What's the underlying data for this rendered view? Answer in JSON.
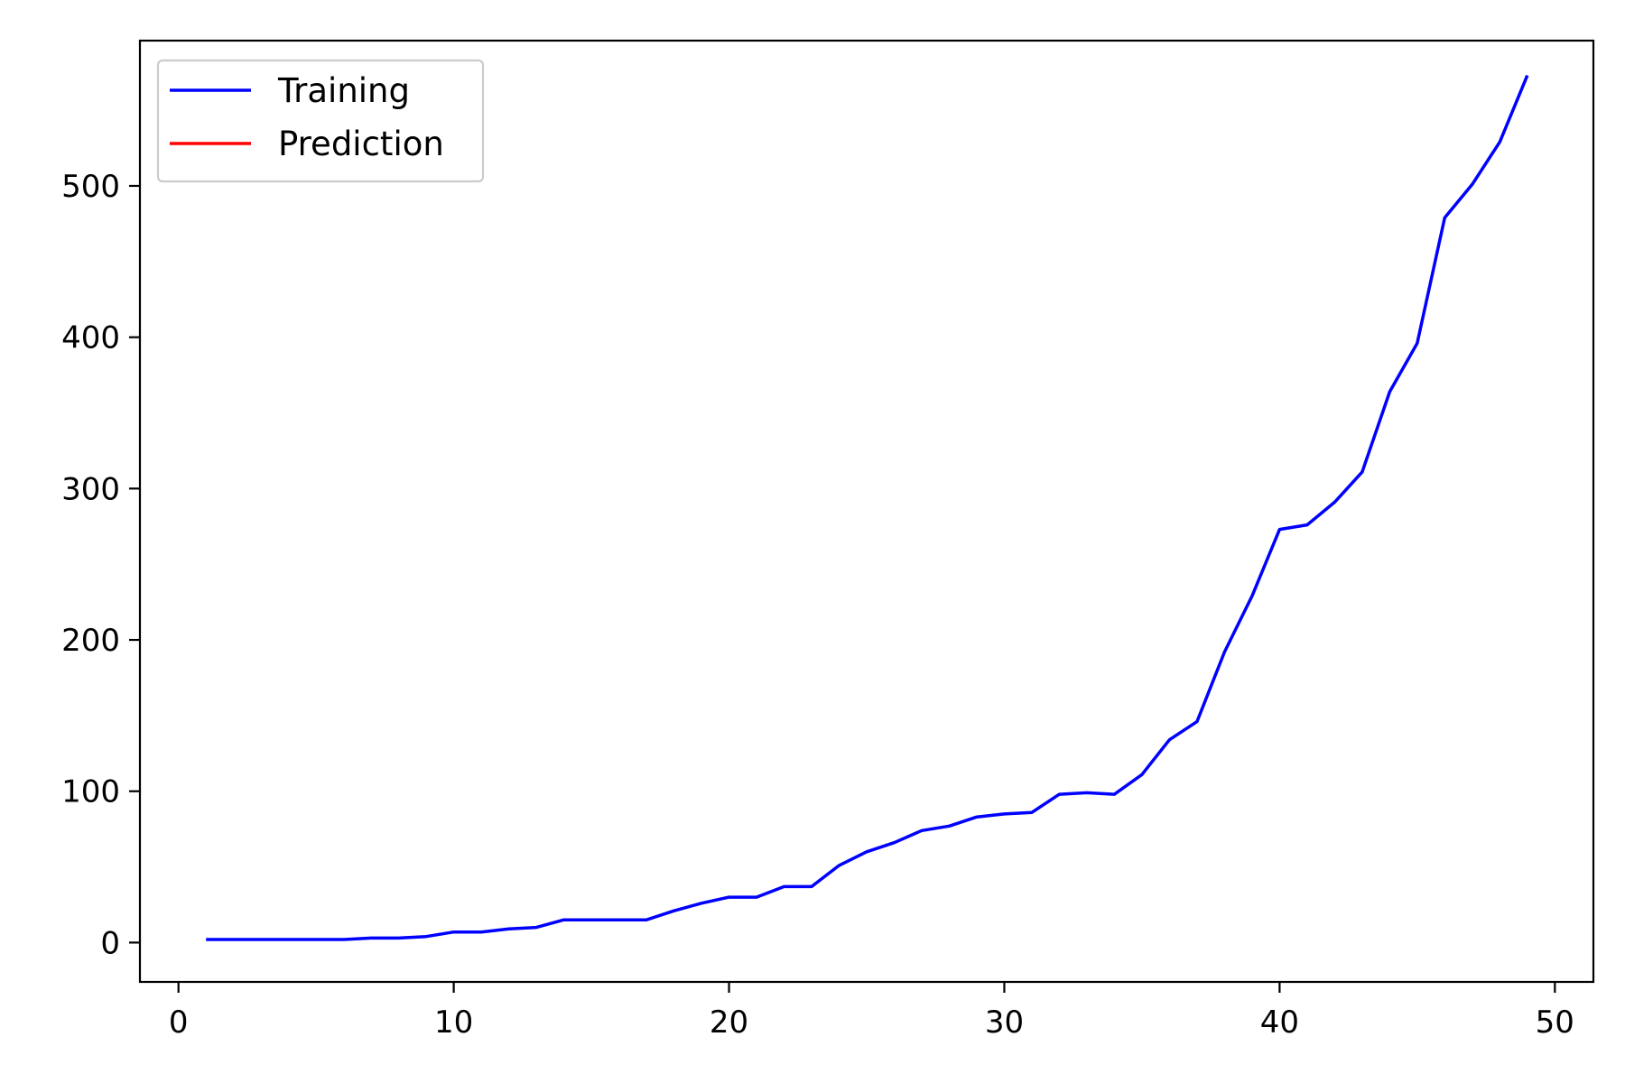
{
  "chart_data": {
    "type": "line",
    "title": "",
    "xlabel": "",
    "ylabel": "",
    "xlim": [
      -1.4,
      51.4
    ],
    "ylim": [
      -26,
      596
    ],
    "x_ticks": [
      0,
      10,
      20,
      30,
      40,
      50
    ],
    "y_ticks": [
      0,
      100,
      200,
      300,
      400,
      500
    ],
    "grid": false,
    "legend_position": "top-left",
    "series": [
      {
        "name": "Training",
        "color": "#0000ff",
        "x": [
          1,
          2,
          3,
          4,
          5,
          6,
          7,
          8,
          9,
          10,
          11,
          12,
          13,
          14,
          15,
          16,
          17,
          18,
          19,
          20,
          21,
          22,
          23,
          24,
          25,
          26,
          27,
          28,
          29,
          30,
          31,
          32,
          33,
          34,
          35,
          36,
          37,
          38,
          39,
          40,
          41,
          42,
          43,
          44,
          45,
          46,
          47,
          48,
          49
        ],
        "y": [
          2,
          2,
          2,
          2,
          2,
          2,
          3,
          3,
          4,
          7,
          7,
          9,
          10,
          15,
          15,
          15,
          15,
          21,
          26,
          30,
          30,
          37,
          37,
          51,
          60,
          66,
          74,
          77,
          83,
          85,
          86,
          98,
          99,
          98,
          111,
          134,
          146,
          192,
          229,
          273,
          276,
          291,
          311,
          364,
          396,
          479,
          501,
          529,
          573
        ]
      },
      {
        "name": "Prediction",
        "color": "#ff0000",
        "x": [],
        "y": []
      }
    ]
  }
}
